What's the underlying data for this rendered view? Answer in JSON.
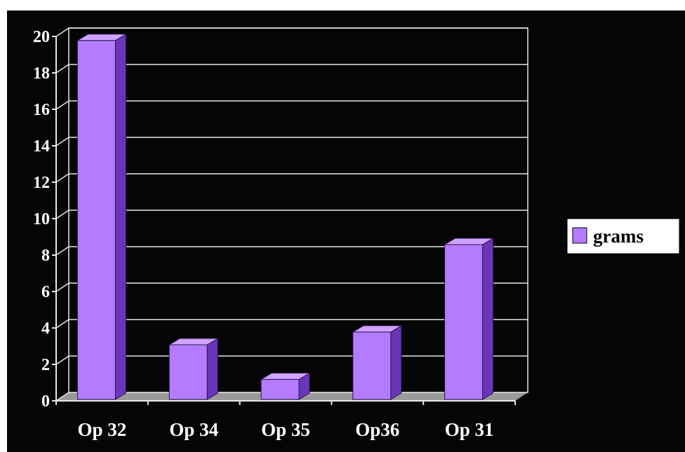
{
  "chart_data": {
    "type": "bar",
    "categories": [
      "Op 32",
      "Op 34",
      "Op 35",
      "Op36",
      "Op 31"
    ],
    "series": [
      {
        "name": "grams",
        "values": [
          19.7,
          3.0,
          1.1,
          3.7,
          8.5
        ]
      }
    ],
    "ylim": [
      0,
      20
    ],
    "yticks": [
      0,
      2,
      4,
      6,
      8,
      10,
      12,
      14,
      16,
      18,
      20
    ],
    "grid": true,
    "legend_position": "right",
    "style": "3d-column",
    "colors": {
      "bar_front": "#B57BFF",
      "bar_top": "#CFA3FF",
      "bar_side": "#6A36B8",
      "background": "#050505",
      "floor": "#9A9A9A",
      "grid": "#E8E8E8",
      "text": "#FFFFFF",
      "legend_bg": "#FFFFFF"
    }
  }
}
